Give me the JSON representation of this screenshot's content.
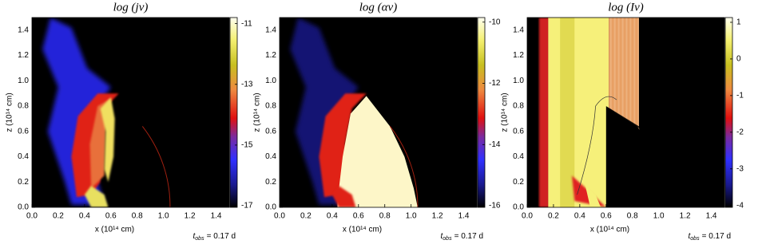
{
  "chart_data": [
    {
      "type": "heatmap",
      "title": "log (jν)",
      "x_label": "x (10¹⁴ cm)",
      "y_label": "z (10¹⁴ cm)",
      "annotation": {
        "symbol": "t",
        "subscript": "obs",
        "text": "= 0.17 d"
      },
      "xlim": [
        0,
        1.5
      ],
      "ylim": [
        0,
        1.5
      ],
      "xticks": [
        {
          "value": 0,
          "label": "0.0"
        },
        {
          "value": 0.2,
          "label": "0.2"
        },
        {
          "value": 0.4,
          "label": "0.4"
        },
        {
          "value": 0.6,
          "label": "0.6"
        },
        {
          "value": 0.8,
          "label": "0.8"
        },
        {
          "value": 1,
          "label": "1.0"
        },
        {
          "value": 1.2,
          "label": "1.2"
        },
        {
          "value": 1.4,
          "label": "1.4"
        }
      ],
      "yticks": [
        {
          "value": 0,
          "label": "0.0"
        },
        {
          "value": 0.2,
          "label": "0.2"
        },
        {
          "value": 0.4,
          "label": "0.4"
        },
        {
          "value": 0.6,
          "label": "0.6"
        },
        {
          "value": 0.8,
          "label": "0.8"
        },
        {
          "value": 1,
          "label": "1.0"
        },
        {
          "value": 1.2,
          "label": "1.2"
        },
        {
          "value": 1.4,
          "label": "1.4"
        }
      ],
      "colorbar_lim": [
        -17.05,
        -10.8
      ],
      "colorbar_ticks": [
        -11,
        -13,
        -15,
        -17
      ]
    },
    {
      "type": "heatmap",
      "title": "log (αν)",
      "x_label": "x (10¹⁴ cm)",
      "y_label": "z (10¹⁴ cm)",
      "annotation": {
        "symbol": "t",
        "subscript": "obs",
        "text": "= 0.17 d"
      },
      "xlim": [
        0,
        1.5
      ],
      "ylim": [
        0,
        1.5
      ],
      "xticks": [
        {
          "value": 0,
          "label": "0.0"
        },
        {
          "value": 0.2,
          "label": "0.2"
        },
        {
          "value": 0.4,
          "label": "0.4"
        },
        {
          "value": 0.6,
          "label": "0.6"
        },
        {
          "value": 0.8,
          "label": "0.8"
        },
        {
          "value": 1,
          "label": "1.0"
        },
        {
          "value": 1.2,
          "label": "1.2"
        },
        {
          "value": 1.4,
          "label": "1.4"
        }
      ],
      "yticks": [
        {
          "value": 0,
          "label": "0.0"
        },
        {
          "value": 0.2,
          "label": "0.2"
        },
        {
          "value": 0.4,
          "label": "0.4"
        },
        {
          "value": 0.6,
          "label": "0.6"
        },
        {
          "value": 0.8,
          "label": "0.8"
        },
        {
          "value": 1,
          "label": "1.0"
        },
        {
          "value": 1.2,
          "label": "1.2"
        },
        {
          "value": 1.4,
          "label": "1.4"
        }
      ],
      "colorbar_lim": [
        -16.05,
        -9.85
      ],
      "colorbar_ticks": [
        -10,
        -12,
        -14,
        -16
      ]
    },
    {
      "type": "heatmap",
      "title": "log (Iν)",
      "x_label": "x (10¹⁴ cm)",
      "y_label": "z (10¹⁴ cm)",
      "annotation": {
        "symbol": "t",
        "subscript": "obs",
        "text": "= 0.17 d"
      },
      "xlim": [
        0,
        1.5
      ],
      "ylim": [
        0,
        1.5
      ],
      "xticks": [
        {
          "value": 0,
          "label": "0.0"
        },
        {
          "value": 0.2,
          "label": "0.2"
        },
        {
          "value": 0.4,
          "label": "0.4"
        },
        {
          "value": 0.6,
          "label": "0.6"
        },
        {
          "value": 0.8,
          "label": "0.8"
        },
        {
          "value": 1,
          "label": "1.0"
        },
        {
          "value": 1.2,
          "label": "1.2"
        },
        {
          "value": 1.4,
          "label": "1.4"
        }
      ],
      "yticks": [
        {
          "value": 0,
          "label": "0.0"
        },
        {
          "value": 0.2,
          "label": "0.2"
        },
        {
          "value": 0.4,
          "label": "0.4"
        },
        {
          "value": 0.6,
          "label": "0.6"
        },
        {
          "value": 0.8,
          "label": "0.8"
        },
        {
          "value": 1,
          "label": "1.0"
        },
        {
          "value": 1.2,
          "label": "1.2"
        },
        {
          "value": 1.4,
          "label": "1.4"
        }
      ],
      "colorbar_lim": [
        -4.05,
        1.13
      ],
      "colorbar_ticks": [
        1,
        0,
        -1,
        -2,
        -3,
        -4
      ]
    }
  ]
}
